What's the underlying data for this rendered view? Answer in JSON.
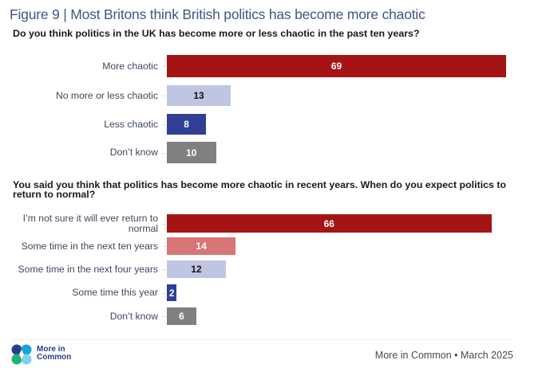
{
  "title": "Figure 9 | Most Britons think British politics has become more chaotic",
  "chart_data": [
    {
      "type": "bar",
      "orientation": "horizontal",
      "title": "Do you think politics in the UK has become more or less chaotic in the past ten years?",
      "categories": [
        "More chaotic",
        "No more or less chaotic",
        "Less chaotic",
        "Don’t know"
      ],
      "values": [
        69,
        13,
        8,
        10
      ],
      "colors": [
        "#a41414",
        "#c0c6e2",
        "#2e3f95",
        "#808080"
      ],
      "label_colors": [
        "#ffffff",
        "#111111",
        "#ffffff",
        "#ffffff"
      ],
      "xlabel": "",
      "ylabel": "",
      "xlim": [
        0,
        69
      ],
      "unit": "%",
      "grid": false,
      "legend": "none"
    },
    {
      "type": "bar",
      "orientation": "horizontal",
      "title": "You said you think that politics has become more chaotic in recent years. When do you expect politics to return to normal?",
      "categories": [
        "I’m not sure it will ever return to normal",
        "Some time in the next ten years",
        "Some time in the next four years",
        "Some time this year",
        "Don’t know"
      ],
      "category_lines": [
        [
          "I’m not sure it will ever return to",
          "normal"
        ],
        [
          "Some time in the next ten years"
        ],
        [
          "Some time in the next four years"
        ],
        [
          "Some time this year"
        ],
        [
          "Don’t know"
        ]
      ],
      "values": [
        66,
        14,
        12,
        2,
        6
      ],
      "colors": [
        "#a41414",
        "#d87575",
        "#c0c6e2",
        "#2e3f95",
        "#808080"
      ],
      "label_colors": [
        "#ffffff",
        "#ffffff",
        "#111111",
        "#ffffff",
        "#ffffff"
      ],
      "xlabel": "",
      "ylabel": "",
      "xlim": [
        0,
        69
      ],
      "unit": "%",
      "grid": false,
      "legend": "none"
    }
  ],
  "footer": {
    "logo_line1": "More in",
    "logo_line2": "Common",
    "source": "More in Common • March 2025"
  },
  "logo_colors": [
    "#2b3b8f",
    "#1aa2d6",
    "#1bb37a",
    "#7fd0ee"
  ]
}
